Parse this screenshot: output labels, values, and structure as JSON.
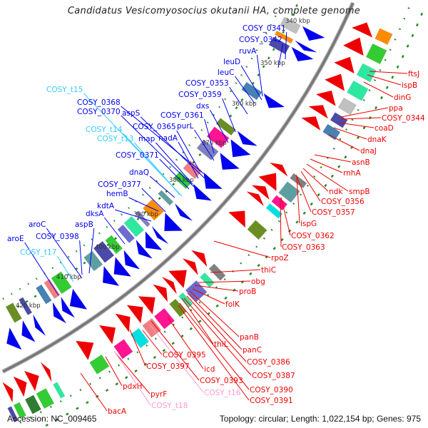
{
  "title": "Candidatus Vesicomyosocius okutanii HA, complete genome",
  "footer": {
    "accession": "Accession: NC_009465",
    "summary": "Topology: circular; Length: 1,022,154 bp; Genes: 975"
  },
  "colors": {
    "forward": "#0000ee",
    "reverse": "#ee0000",
    "trna_forward": "#33ccff",
    "trna_reverse": "#ff99cc",
    "backbone": "#777777",
    "tick": "#228B22"
  },
  "ticks": [
    "340 kbp",
    "350 kbp",
    "360 kbp",
    "370 kbp",
    "380 kbp",
    "390 kbp",
    "400 kbp",
    "410 kbp",
    "420 kbp"
  ],
  "forward_labels": [
    "COSY_0341",
    "COSY_0342",
    "ruvA",
    "leuD",
    "leuC",
    "COSY_0353",
    "COSY_0359",
    "dxs",
    "COSY_0361",
    "purL",
    "COSY_t15",
    "COSY_0368",
    "COSY_0370",
    "aspS",
    "COSY_0365",
    "map",
    "nadA",
    "COSY_t14",
    "COSY_t13",
    "COSY_0371",
    "dnaQ",
    "COSY_0377",
    "hemB",
    "kdtA",
    "dksA",
    "aroC",
    "COSY_0398",
    "aspB",
    "aroE",
    "COSY_t17"
  ],
  "reverse_labels": [
    "ftsJ",
    "ispB",
    "dinG",
    "ppa",
    "COSY_0344",
    "coaD",
    "dnaK",
    "dnaJ",
    "asnB",
    "rnhA",
    "smpB",
    "ndk",
    "COSY_0356",
    "COSY_0357",
    "ispG",
    "COSY_0362",
    "COSY_0363",
    "rpoZ",
    "thiC",
    "obg",
    "proB",
    "folK",
    "panB",
    "panC",
    "thiL",
    "COSY_0386",
    "COSY_0387",
    "COSY_0390",
    "COSY_0391",
    "icd",
    "COSY_0393",
    "COSY_t16",
    "COSY_0395",
    "COSY_0397",
    "pdxH",
    "pyrF",
    "COSY_t18",
    "bacA"
  ]
}
